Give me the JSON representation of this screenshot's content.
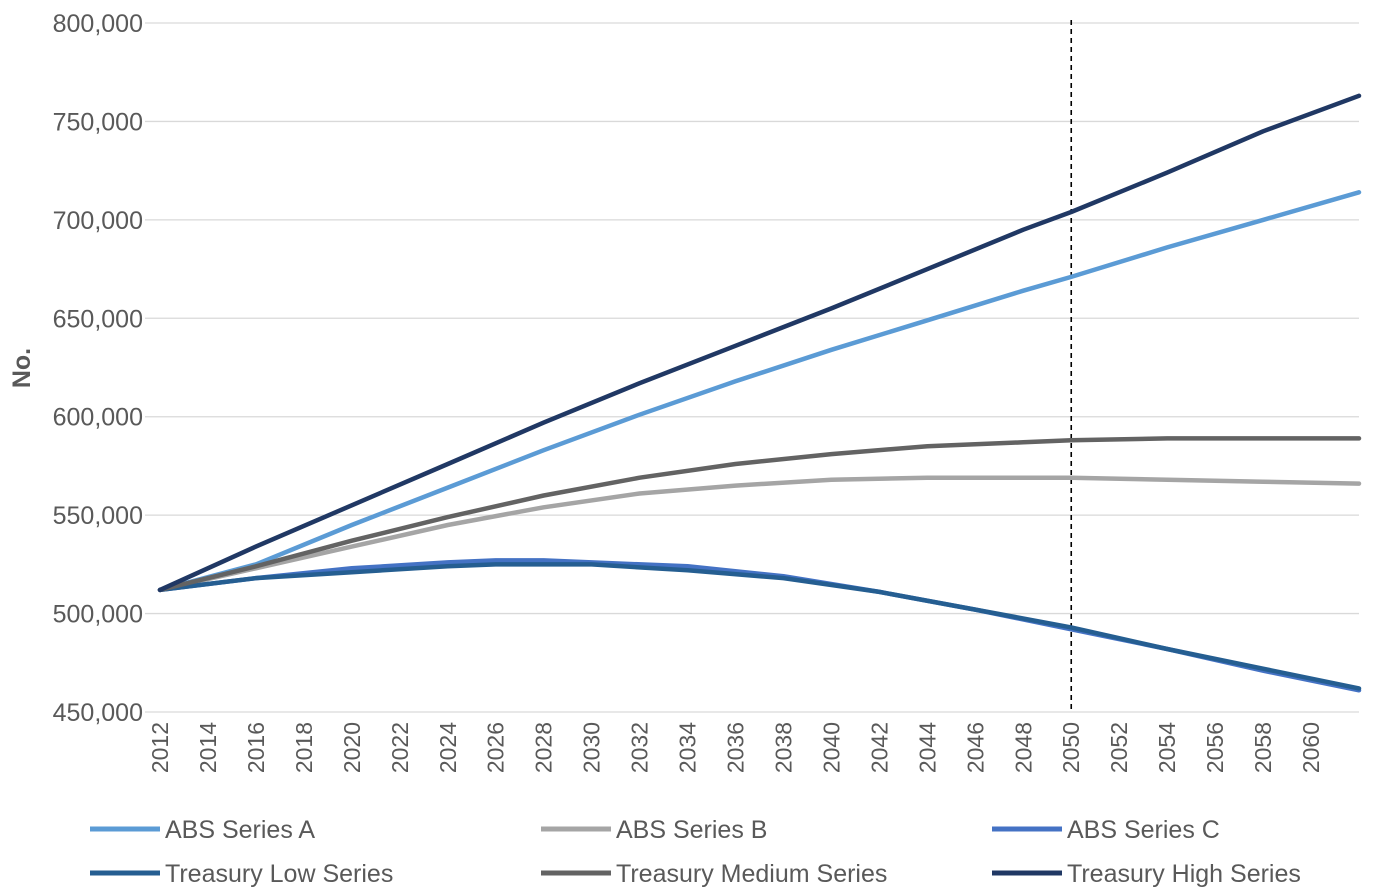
{
  "chart_data": {
    "type": "line",
    "title": "",
    "xlabel": "",
    "ylabel": "No.",
    "xlim": [
      2012,
      2062
    ],
    "ylim": [
      450000,
      800000
    ],
    "yticks": [
      450000,
      500000,
      550000,
      600000,
      650000,
      700000,
      750000,
      800000
    ],
    "ytick_labels": [
      "450,000",
      "500,000",
      "550,000",
      "600,000",
      "650,000",
      "700,000",
      "750,000",
      "800,000"
    ],
    "xticks": [
      2012,
      2014,
      2016,
      2018,
      2020,
      2022,
      2024,
      2026,
      2028,
      2030,
      2032,
      2034,
      2036,
      2038,
      2040,
      2042,
      2044,
      2046,
      2048,
      2050,
      2052,
      2054,
      2056,
      2058,
      2060
    ],
    "xtick_labels": [
      "2012",
      "2014",
      "2016",
      "2018",
      "2020",
      "2022",
      "2024",
      "2026",
      "2028",
      "2030",
      "2032",
      "2034",
      "2036",
      "2038",
      "2040",
      "2042",
      "2044",
      "2046",
      "2048",
      "2050",
      "2052",
      "2054",
      "2056",
      "2058",
      "2060"
    ],
    "grid": "horizontal",
    "legend_position": "bottom",
    "reference_line_x": 2050,
    "series": [
      {
        "name": "ABS Series A",
        "color": "#5B9BD5",
        "x": [
          2012,
          2016,
          2020,
          2024,
          2028,
          2032,
          2036,
          2040,
          2044,
          2048,
          2050,
          2054,
          2058,
          2062
        ],
        "y": [
          512000,
          525000,
          545000,
          564000,
          583000,
          601000,
          618000,
          634000,
          649000,
          664000,
          671000,
          686000,
          700000,
          714000
        ]
      },
      {
        "name": "ABS Series B",
        "color": "#A5A5A5",
        "x": [
          2012,
          2016,
          2020,
          2024,
          2028,
          2032,
          2036,
          2040,
          2044,
          2048,
          2050,
          2054,
          2058,
          2062
        ],
        "y": [
          512000,
          523000,
          534000,
          545000,
          554000,
          561000,
          565000,
          568000,
          569000,
          569000,
          569000,
          568000,
          567000,
          566000
        ]
      },
      {
        "name": "ABS Series C",
        "color": "#4472C4",
        "x": [
          2012,
          2016,
          2020,
          2024,
          2026,
          2028,
          2030,
          2034,
          2038,
          2042,
          2046,
          2050,
          2054,
          2058,
          2062
        ],
        "y": [
          512000,
          518000,
          523000,
          526000,
          527000,
          527000,
          526000,
          524000,
          519000,
          511000,
          502000,
          492000,
          482000,
          471000,
          461000
        ]
      },
      {
        "name": "Treasury Low Series",
        "color": "#255E91",
        "x": [
          2012,
          2016,
          2020,
          2024,
          2026,
          2028,
          2030,
          2034,
          2038,
          2042,
          2046,
          2050,
          2054,
          2058,
          2062
        ],
        "y": [
          512000,
          518000,
          521000,
          524000,
          525000,
          525000,
          525000,
          522000,
          518000,
          511000,
          502000,
          493000,
          482000,
          472000,
          462000
        ]
      },
      {
        "name": "Treasury Medium Series",
        "color": "#636363",
        "x": [
          2012,
          2016,
          2020,
          2024,
          2028,
          2032,
          2036,
          2040,
          2044,
          2048,
          2050,
          2054,
          2058,
          2062
        ],
        "y": [
          512000,
          524000,
          537000,
          549000,
          560000,
          569000,
          576000,
          581000,
          585000,
          587000,
          588000,
          589000,
          589000,
          589000
        ]
      },
      {
        "name": "Treasury High Series",
        "color": "#203864",
        "x": [
          2012,
          2016,
          2020,
          2024,
          2028,
          2032,
          2036,
          2040,
          2044,
          2048,
          2050,
          2054,
          2058,
          2062
        ],
        "y": [
          512000,
          534000,
          555000,
          576000,
          597000,
          617000,
          636000,
          655000,
          675000,
          695000,
          704000,
          724000,
          745000,
          763000
        ]
      }
    ]
  }
}
